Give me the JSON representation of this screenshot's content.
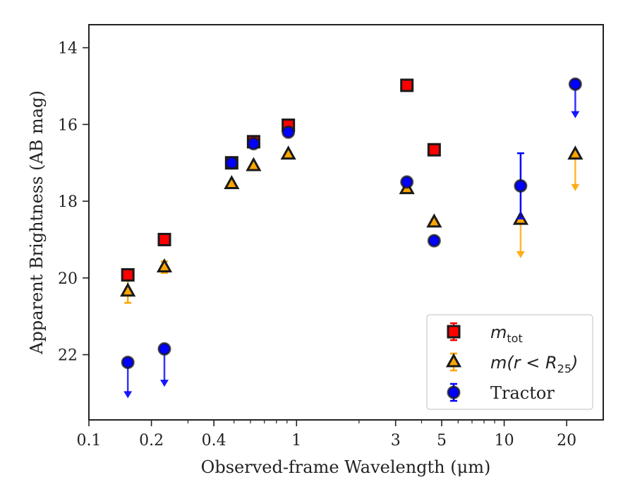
{
  "chart_data": {
    "type": "scatter",
    "xlabel": "Observed-frame Wavelength (μm)",
    "ylabel": "Apparent Brightness (AB mag)",
    "xscale": "log",
    "xlim": [
      0.1,
      30
    ],
    "ylim": [
      23.7,
      13.4
    ],
    "y_inverted": true,
    "x_ticks": [
      {
        "value": 0.1,
        "label": "0.1"
      },
      {
        "value": 0.2,
        "label": "0.2"
      },
      {
        "value": 0.4,
        "label": "0.4"
      },
      {
        "value": 1,
        "label": "1"
      },
      {
        "value": 3,
        "label": "3"
      },
      {
        "value": 5,
        "label": "5"
      },
      {
        "value": 10,
        "label": "10"
      },
      {
        "value": 20,
        "label": "20"
      }
    ],
    "y_ticks": [
      {
        "value": 14,
        "label": "14"
      },
      {
        "value": 16,
        "label": "16"
      },
      {
        "value": 18,
        "label": "18"
      },
      {
        "value": 20,
        "label": "20"
      },
      {
        "value": 22,
        "label": "22"
      }
    ],
    "grid": false,
    "legend_position": "lower-right",
    "series": [
      {
        "name": "m_tot",
        "legend_main": "m",
        "legend_sub": "tot",
        "marker": "square",
        "color": "#ff0000",
        "edge": "#1a1a1a",
        "errcolor": "#ff0000",
        "points": [
          {
            "x": 0.154,
            "y": 19.92,
            "err": 0.1
          },
          {
            "x": 0.231,
            "y": 19.0,
            "err": 0.06
          },
          {
            "x": 0.487,
            "y": 17.0,
            "err": 0.04
          },
          {
            "x": 0.621,
            "y": 16.45,
            "err": 0.04
          },
          {
            "x": 0.913,
            "y": 16.02,
            "err": 0.04
          },
          {
            "x": 3.4,
            "y": 14.98,
            "err": 0.04
          },
          {
            "x": 4.6,
            "y": 16.66,
            "err": 0.04
          }
        ]
      },
      {
        "name": "m(r < R_25)",
        "legend_main": "m(r < R",
        "legend_sub": "25",
        "legend_end": ")",
        "marker": "triangle",
        "color": "#ffa500",
        "edge": "#1a1a1a",
        "errcolor": "#ffa500",
        "points": [
          {
            "x": 0.154,
            "y": 20.35,
            "err": 0.3
          },
          {
            "x": 0.231,
            "y": 19.72,
            "err": 0.15
          },
          {
            "x": 0.487,
            "y": 17.55,
            "err": 0.06
          },
          {
            "x": 0.621,
            "y": 17.08,
            "err": 0.06
          },
          {
            "x": 0.913,
            "y": 16.78,
            "err": 0.06
          },
          {
            "x": 3.4,
            "y": 17.68,
            "err": 0.06
          },
          {
            "x": 4.6,
            "y": 18.55,
            "err": 0.08
          },
          {
            "x": 12.0,
            "y": 18.48,
            "upper_limit_to": 19.45
          },
          {
            "x": 22.0,
            "y": 16.78,
            "upper_limit_to": 17.7
          }
        ]
      },
      {
        "name": "Tractor",
        "legend_main": "Tractor",
        "marker": "circle",
        "color": "#0000ff",
        "edge": "#1a1a1a",
        "errcolor": "#0000ff",
        "points": [
          {
            "x": 0.154,
            "y": 22.2,
            "upper_limit_to": 23.1
          },
          {
            "x": 0.231,
            "y": 21.85,
            "upper_limit_to": 22.8
          },
          {
            "x": 0.487,
            "y": 17.0,
            "err": 0.04
          },
          {
            "x": 0.621,
            "y": 16.5,
            "err": 0.04
          },
          {
            "x": 0.913,
            "y": 16.2,
            "err": 0.05
          },
          {
            "x": 3.4,
            "y": 17.5,
            "err": 0.05
          },
          {
            "x": 4.6,
            "y": 19.03,
            "err": 0.06
          },
          {
            "x": 12.0,
            "y": 17.6,
            "err": 0.85
          },
          {
            "x": 22.0,
            "y": 14.95,
            "upper_limit_to": 15.8
          }
        ]
      }
    ]
  }
}
